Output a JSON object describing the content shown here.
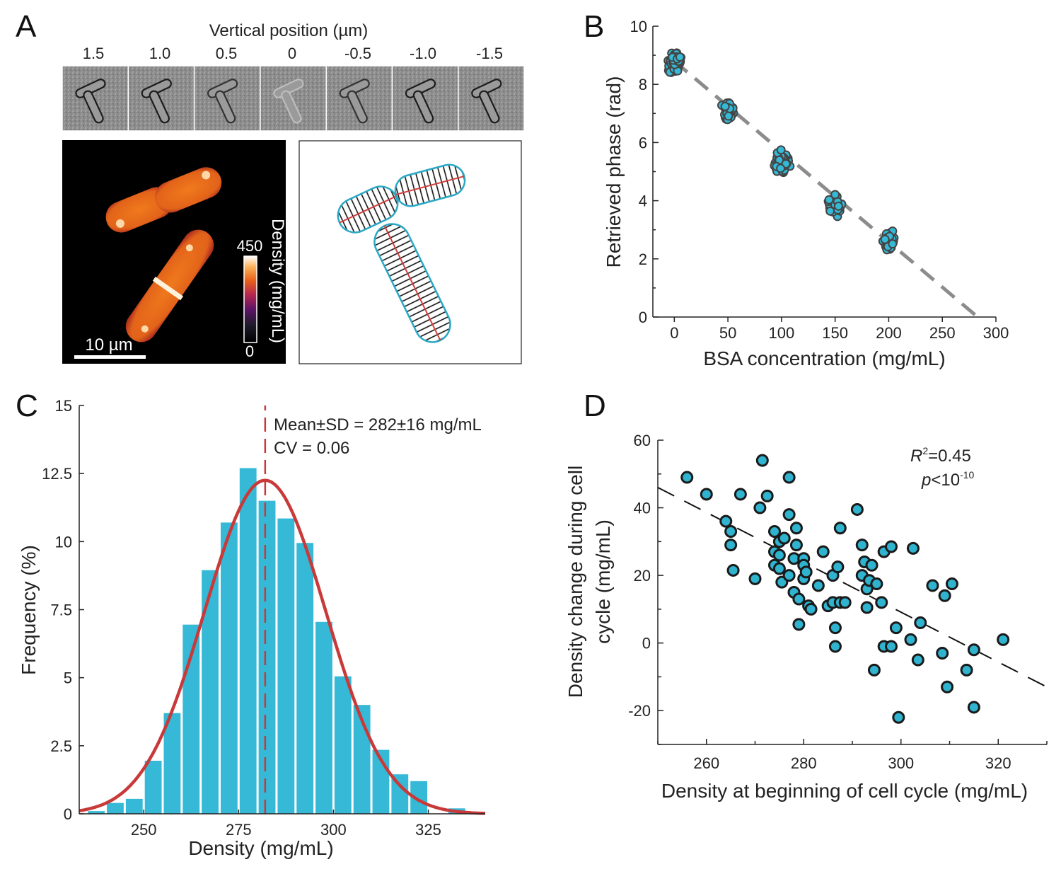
{
  "panels": {
    "A": {
      "letter": "A",
      "strip_title": "Vertical position (µm)",
      "positions": [
        "1.5",
        "1.0",
        "0.5",
        "0",
        "-0.5",
        "-1.0",
        "-1.5"
      ],
      "colorbar_label": "Density (mg/mL)",
      "colorbar_max": "450",
      "colorbar_min": "0",
      "scalebar_label": "10 µm"
    },
    "B": {
      "letter": "B"
    },
    "C": {
      "letter": "C"
    },
    "D": {
      "letter": "D"
    }
  },
  "chart_data": [
    {
      "id": "B",
      "type": "scatter",
      "xlabel": "BSA concentration (mg/mL)",
      "ylabel": "Retrieved phase (rad)",
      "xlim": [
        -20,
        300
      ],
      "ylim": [
        0,
        10
      ],
      "xticks": [
        0,
        50,
        100,
        150,
        200,
        250,
        300
      ],
      "yticks": [
        0,
        2,
        4,
        6,
        8,
        10
      ],
      "point_color": "#35b9d6",
      "point_edge": "#444444",
      "fit": {
        "x": [
          0,
          283
        ],
        "y": [
          8.8,
          0
        ],
        "color": "#8c8c8c",
        "style": "dashed"
      },
      "clusters": [
        {
          "x": 0,
          "y": 8.75,
          "n": 75
        },
        {
          "x": 50,
          "y": 7.1,
          "n": 45
        },
        {
          "x": 100,
          "y": 5.3,
          "n": 45
        },
        {
          "x": 150,
          "y": 3.85,
          "n": 40
        },
        {
          "x": 200,
          "y": 2.6,
          "n": 40
        }
      ]
    },
    {
      "id": "C",
      "type": "bar",
      "xlabel": "Density (mg/mL)",
      "ylabel": "Frequency (%)",
      "xlim": [
        233,
        340
      ],
      "ylim": [
        0,
        15
      ],
      "xticks": [
        250,
        275,
        300,
        325
      ],
      "yticks": [
        "0",
        "2.5",
        "5",
        "7.5",
        "10",
        "12.5",
        "15"
      ],
      "bar_color": "#35b9d6",
      "bin_width": 5,
      "bins": [
        237.5,
        242.5,
        247.5,
        252.5,
        257.5,
        262.5,
        267.5,
        272.5,
        277.5,
        282.5,
        287.5,
        292.5,
        297.5,
        302.5,
        307.5,
        312.5,
        317.5,
        322.5,
        327.5,
        332.5
      ],
      "values": [
        0.1,
        0.4,
        0.55,
        1.95,
        3.7,
        6.95,
        8.95,
        10.7,
        12.7,
        11.5,
        10.85,
        9.95,
        7.05,
        5.05,
        4.0,
        2.35,
        1.45,
        1.2,
        0.0,
        0.2
      ],
      "fit": {
        "type": "normal",
        "mean": 282,
        "sd": 16,
        "peak": 12.25,
        "color": "#c83a3a"
      },
      "mean_line": 282,
      "mean_text": "Mean±SD = 282±16 mg/mL",
      "cv_text": "CV = 0.06"
    },
    {
      "id": "D",
      "type": "scatter",
      "xlabel": "Density at beginning of cell cycle (mg/mL)",
      "ylabel_line1": "Density change during cell",
      "ylabel_line2": "cycle (mg/mL)",
      "xlim": [
        250,
        330
      ],
      "ylim": [
        -30,
        60
      ],
      "xticks": [
        260,
        280,
        300,
        320
      ],
      "yticks": [
        "-20",
        "0",
        "20",
        "40",
        "60"
      ],
      "point_color": "#2fb3cf",
      "point_edge": "#1a1a1a",
      "r2_label": "R",
      "r2_sup": "2",
      "r2_value": "=0.45",
      "p_label": "p",
      "p_text": "<10",
      "p_sup": "-10",
      "fit": {
        "x": [
          250,
          330
        ],
        "y": [
          46,
          -13
        ],
        "color": "#111111",
        "style": "dashed"
      },
      "points": [
        [
          256,
          49
        ],
        [
          260,
          44
        ],
        [
          264,
          36
        ],
        [
          265,
          33
        ],
        [
          265,
          29
        ],
        [
          265.5,
          21.5
        ],
        [
          267,
          44
        ],
        [
          270,
          19
        ],
        [
          271,
          40
        ],
        [
          271.5,
          54
        ],
        [
          272.5,
          43.5
        ],
        [
          274,
          33
        ],
        [
          274,
          27
        ],
        [
          274,
          23
        ],
        [
          275,
          30
        ],
        [
          275,
          26
        ],
        [
          275,
          22
        ],
        [
          275.5,
          18
        ],
        [
          276,
          31
        ],
        [
          277,
          49
        ],
        [
          277,
          38
        ],
        [
          277,
          20
        ],
        [
          278,
          15
        ],
        [
          278,
          25
        ],
        [
          278.5,
          34
        ],
        [
          278.5,
          29
        ],
        [
          279,
          5.5
        ],
        [
          279,
          13
        ],
        [
          280,
          19
        ],
        [
          280,
          25
        ],
        [
          280,
          23
        ],
        [
          280.5,
          21
        ],
        [
          281,
          11
        ],
        [
          281.5,
          10
        ],
        [
          283,
          17
        ],
        [
          284,
          27
        ],
        [
          285,
          11
        ],
        [
          286,
          20
        ],
        [
          286,
          12
        ],
        [
          286.5,
          4.5
        ],
        [
          286.5,
          -1
        ],
        [
          287,
          22.5
        ],
        [
          287.5,
          34
        ],
        [
          287.5,
          12
        ],
        [
          288.5,
          12
        ],
        [
          291,
          39.5
        ],
        [
          292,
          29
        ],
        [
          292,
          20
        ],
        [
          292.5,
          24
        ],
        [
          293,
          16
        ],
        [
          293,
          10.5
        ],
        [
          293.5,
          18.5
        ],
        [
          294,
          23
        ],
        [
          294.5,
          -8
        ],
        [
          295,
          17.5
        ],
        [
          296,
          12
        ],
        [
          296.5,
          27
        ],
        [
          296.5,
          -1
        ],
        [
          298,
          28.5
        ],
        [
          298,
          -1
        ],
        [
          299,
          4.5
        ],
        [
          299.5,
          -22
        ],
        [
          302,
          1
        ],
        [
          302.5,
          28
        ],
        [
          303.5,
          -5
        ],
        [
          304,
          6
        ],
        [
          306.5,
          17
        ],
        [
          308.5,
          -3
        ],
        [
          309,
          14
        ],
        [
          309.5,
          -13
        ],
        [
          310.5,
          17.5
        ],
        [
          313.5,
          -8
        ],
        [
          315,
          -2
        ],
        [
          315,
          -19
        ],
        [
          321,
          1
        ]
      ]
    }
  ]
}
